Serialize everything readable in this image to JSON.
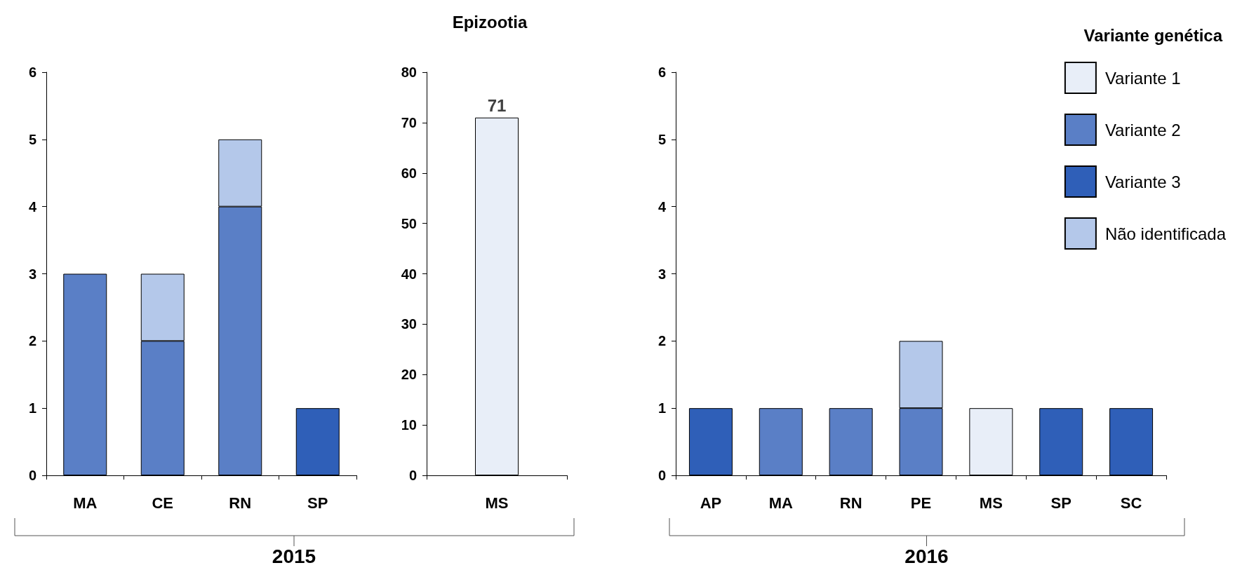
{
  "chart_data": [
    {
      "type": "bar",
      "xlabel": "2015",
      "categories": [
        "MA",
        "CE",
        "RN",
        "SP"
      ],
      "stacked": true,
      "ylim": [
        0,
        6
      ],
      "yticks": [
        0,
        1,
        2,
        3,
        4,
        5,
        6
      ],
      "grid": false,
      "legend": false,
      "series": [
        {
          "color": "#5a7fc6",
          "values": [
            3,
            2,
            4,
            null
          ]
        },
        {
          "color": "#2f5fb8",
          "values": [
            null,
            null,
            null,
            1
          ]
        },
        {
          "color": "#b4c8ea",
          "values": [
            null,
            1,
            1,
            null
          ]
        }
      ]
    },
    {
      "type": "bar",
      "title": "Epizootia",
      "categories": [
        "MS"
      ],
      "ylim": [
        0,
        80
      ],
      "yticks": [
        0,
        10,
        20,
        30,
        40,
        50,
        60,
        70,
        80
      ],
      "grid": false,
      "legend": false,
      "data_labels": true,
      "series": [
        {
          "color": "#e8eef8",
          "values": [
            71
          ]
        }
      ]
    },
    {
      "type": "bar",
      "xlabel": "2016",
      "categories": [
        "AP",
        "MA",
        "RN",
        "PE",
        "MS",
        "SP",
        "SC"
      ],
      "stacked": true,
      "ylim": [
        0,
        6
      ],
      "yticks": [
        0,
        1,
        2,
        3,
        4,
        5,
        6
      ],
      "grid": false,
      "legend": "top right",
      "legend_title": "Variante genética",
      "series": [
        {
          "name": "Variante 1",
          "color": "#e8eef8",
          "values": [
            null,
            null,
            null,
            null,
            1,
            null,
            null
          ]
        },
        {
          "name": "Variante 2",
          "color": "#5a7fc6",
          "values": [
            null,
            1,
            1,
            1,
            null,
            null,
            null
          ]
        },
        {
          "name": "Variante 3",
          "color": "#2f5fb8",
          "values": [
            1,
            null,
            null,
            null,
            null,
            1,
            1
          ]
        },
        {
          "name": "Não identificada",
          "color": "#b4c8ea",
          "values": [
            null,
            null,
            null,
            1,
            null,
            null,
            null
          ]
        }
      ]
    }
  ]
}
